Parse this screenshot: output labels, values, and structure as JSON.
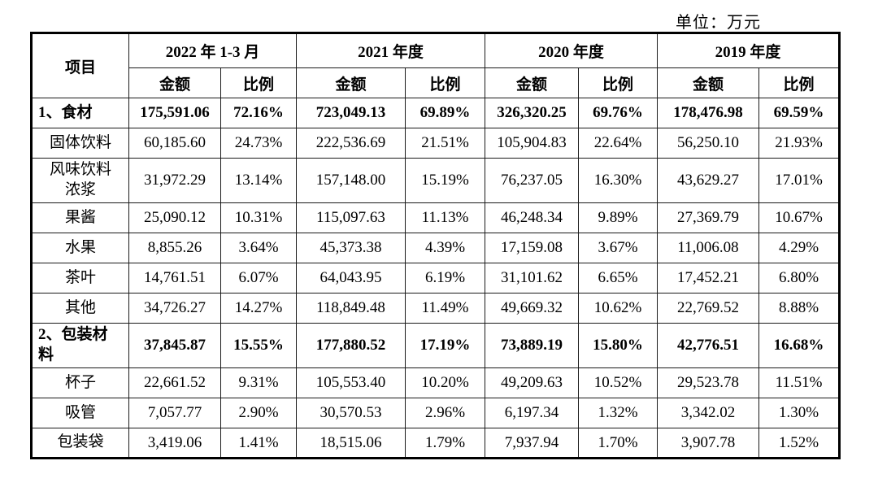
{
  "unit_label": "单位：万元",
  "table": {
    "item_header": "项目",
    "amount_header": "金额",
    "ratio_header": "比例",
    "periods": [
      "2022 年 1-3 月",
      "2021 年度",
      "2020 年度",
      "2019 年度"
    ],
    "rows": [
      {
        "label": "1、食材",
        "bold": true,
        "tall": false,
        "values": [
          "175,591.06",
          "72.16%",
          "723,049.13",
          "69.89%",
          "326,320.25",
          "69.76%",
          "178,476.98",
          "69.59%"
        ]
      },
      {
        "label": "固体饮料",
        "bold": false,
        "tall": false,
        "values": [
          "60,185.60",
          "24.73%",
          "222,536.69",
          "21.51%",
          "105,904.83",
          "22.64%",
          "56,250.10",
          "21.93%"
        ]
      },
      {
        "label": "风味饮料\n浓浆",
        "bold": false,
        "tall": true,
        "values": [
          "31,972.29",
          "13.14%",
          "157,148.00",
          "15.19%",
          "76,237.05",
          "16.30%",
          "43,629.27",
          "17.01%"
        ]
      },
      {
        "label": "果酱",
        "bold": false,
        "tall": false,
        "values": [
          "25,090.12",
          "10.31%",
          "115,097.63",
          "11.13%",
          "46,248.34",
          "9.89%",
          "27,369.79",
          "10.67%"
        ]
      },
      {
        "label": "水果",
        "bold": false,
        "tall": false,
        "values": [
          "8,855.26",
          "3.64%",
          "45,373.38",
          "4.39%",
          "17,159.08",
          "3.67%",
          "11,006.08",
          "4.29%"
        ]
      },
      {
        "label": "茶叶",
        "bold": false,
        "tall": false,
        "values": [
          "14,761.51",
          "6.07%",
          "64,043.95",
          "6.19%",
          "31,101.62",
          "6.65%",
          "17,452.21",
          "6.80%"
        ]
      },
      {
        "label": "其他",
        "bold": false,
        "tall": false,
        "values": [
          "34,726.27",
          "14.27%",
          "118,849.48",
          "11.49%",
          "49,669.32",
          "10.62%",
          "22,769.52",
          "8.88%"
        ]
      },
      {
        "label": "2、包装材\n料",
        "bold": true,
        "tall": true,
        "values": [
          "37,845.87",
          "15.55%",
          "177,880.52",
          "17.19%",
          "73,889.19",
          "15.80%",
          "42,776.51",
          "16.68%"
        ]
      },
      {
        "label": "杯子",
        "bold": false,
        "tall": false,
        "values": [
          "22,661.52",
          "9.31%",
          "105,553.40",
          "10.20%",
          "49,209.63",
          "10.52%",
          "29,523.78",
          "11.51%"
        ]
      },
      {
        "label": "吸管",
        "bold": false,
        "tall": false,
        "values": [
          "7,057.77",
          "2.90%",
          "30,570.53",
          "2.96%",
          "6,197.34",
          "1.32%",
          "3,342.02",
          "1.30%"
        ]
      },
      {
        "label": "包装袋",
        "bold": false,
        "tall": false,
        "values": [
          "3,419.06",
          "1.41%",
          "18,515.06",
          "1.79%",
          "7,937.94",
          "1.70%",
          "3,907.78",
          "1.52%"
        ]
      }
    ]
  }
}
